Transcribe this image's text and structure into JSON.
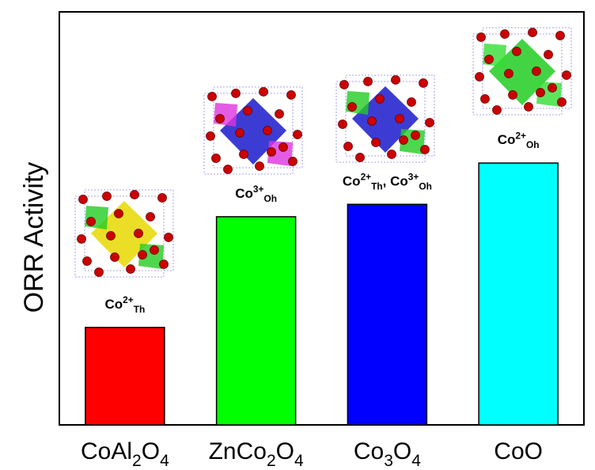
{
  "chart_data": {
    "type": "bar",
    "y_label": "ORR Activity",
    "categories": [
      [
        {
          "text": "CoAl"
        },
        {
          "sub": "2"
        },
        {
          "text": "O"
        },
        {
          "sub": "4"
        }
      ],
      [
        {
          "text": "ZnCo"
        },
        {
          "sub": "2"
        },
        {
          "text": "O"
        },
        {
          "sub": "4"
        }
      ],
      [
        {
          "text": "Co"
        },
        {
          "sub": "3"
        },
        {
          "text": "O"
        },
        {
          "sub": "4"
        }
      ],
      [
        {
          "text": "CoO"
        }
      ]
    ],
    "values": [
      23.6,
      50.4,
      53.4,
      63.4
    ],
    "colors": [
      "#ff0000",
      "#00ff00",
      "#0000ff",
      "#00ffff"
    ],
    "annotations": [
      [
        {
          "text": "Co"
        },
        {
          "sup": "2+"
        },
        {
          "sub": "Th"
        }
      ],
      [
        {
          "text": "Co"
        },
        {
          "sup": "3+"
        },
        {
          "sub": "Oh"
        }
      ],
      [
        {
          "text": "Co"
        },
        {
          "sup": "2+"
        },
        {
          "sub": "Th"
        },
        {
          "text": ", Co"
        },
        {
          "sup": "3+"
        },
        {
          "sub": "Oh"
        }
      ],
      [
        {
          "text": "Co"
        },
        {
          "sup": "2+"
        },
        {
          "sub": "Oh"
        }
      ]
    ],
    "ylim": [
      0,
      100
    ]
  }
}
